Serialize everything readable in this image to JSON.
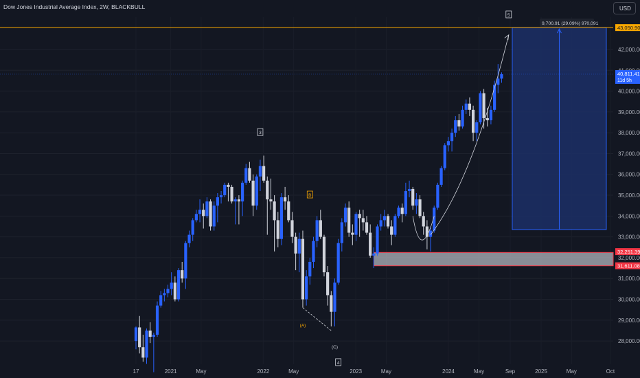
{
  "header": {
    "title": "Dow Jones Industrial Average Index, 2W, BLACKBULL",
    "currency": "USD"
  },
  "colors": {
    "background": "#131722",
    "up_candle": "#2962ff",
    "down_candle": "#d1d4dc",
    "resistance_line": "#f7a600",
    "projection_fill": "#1c2f66",
    "support_zone": "#b2b5be",
    "support_border": "#f23645"
  },
  "chart_data": {
    "type": "candlestick",
    "symbol": "Dow Jones Industrial Average Index",
    "interval": "2W",
    "y_ticks": [
      28000,
      29000,
      30000,
      31000,
      32000,
      33000,
      34000,
      35000,
      36000,
      37000,
      38000,
      39000,
      40000,
      41000,
      42000
    ],
    "ylim": [
      27500,
      43700
    ],
    "x_ticks": [
      {
        "label": "17",
        "date": "2020-08-17"
      },
      {
        "label": "2021",
        "date": "2021-01-01"
      },
      {
        "label": "May",
        "date": "2021-05-01"
      },
      {
        "label": "2022",
        "date": "2022-01-01"
      },
      {
        "label": "May",
        "date": "2022-05-01"
      },
      {
        "label": "2023",
        "date": "2023-01-01"
      },
      {
        "label": "May",
        "date": "2023-05-01"
      },
      {
        "label": "2024",
        "date": "2024-01-01"
      },
      {
        "label": "May",
        "date": "2024-05-01"
      },
      {
        "label": "Sep",
        "date": "2024-09-01"
      },
      {
        "label": "2025",
        "date": "2025-01-01"
      },
      {
        "label": "May",
        "date": "2025-05-01"
      },
      {
        "label": "Oct",
        "date": "2025-10-01"
      }
    ],
    "price_labels": {
      "target": "43,050.90",
      "current": "40,811.41",
      "countdown": "11d 5h",
      "zone_top": "32,251.39",
      "zone_bottom": "31,611.08"
    },
    "projection_label": "9,700.91 (29.09%) 970,091",
    "wave_labels": [
      "5",
      "3",
      "B",
      "(A)",
      "(C)",
      "4"
    ],
    "candles": [
      {
        "date": "2020-08-17",
        "open": 28000,
        "high": 28700,
        "low": 27600,
        "close": 28650
      },
      {
        "date": "2020-08-31",
        "open": 28650,
        "high": 29200,
        "low": 27400,
        "close": 27700
      },
      {
        "date": "2020-09-14",
        "open": 27700,
        "high": 28300,
        "low": 27000,
        "close": 27200
      },
      {
        "date": "2020-09-28",
        "open": 27200,
        "high": 28600,
        "low": 26900,
        "close": 28500
      },
      {
        "date": "2020-10-12",
        "open": 28500,
        "high": 28900,
        "low": 27900,
        "close": 28200
      },
      {
        "date": "2020-10-26",
        "open": 28200,
        "high": 28400,
        "low": 26500,
        "close": 28300
      },
      {
        "date": "2020-11-09",
        "open": 28300,
        "high": 29900,
        "low": 28200,
        "close": 29700
      },
      {
        "date": "2020-11-23",
        "open": 29700,
        "high": 30400,
        "low": 29600,
        "close": 30200
      },
      {
        "date": "2020-12-07",
        "open": 30200,
        "high": 30500,
        "low": 29900,
        "close": 30300
      },
      {
        "date": "2020-12-21",
        "open": 30300,
        "high": 30700,
        "low": 30100,
        "close": 30500
      },
      {
        "date": "2021-01-04",
        "open": 30500,
        "high": 31300,
        "low": 30200,
        "close": 30800
      },
      {
        "date": "2021-01-18",
        "open": 30800,
        "high": 31100,
        "low": 29900,
        "close": 30000
      },
      {
        "date": "2021-02-01",
        "open": 30000,
        "high": 31500,
        "low": 29900,
        "close": 31400
      },
      {
        "date": "2021-02-15",
        "open": 31400,
        "high": 31800,
        "low": 30800,
        "close": 31000
      },
      {
        "date": "2021-03-01",
        "open": 31000,
        "high": 32800,
        "low": 30500,
        "close": 32700
      },
      {
        "date": "2021-03-15",
        "open": 32700,
        "high": 33300,
        "low": 32500,
        "close": 33100
      },
      {
        "date": "2021-03-29",
        "open": 33100,
        "high": 33900,
        "low": 32800,
        "close": 33800
      },
      {
        "date": "2021-04-12",
        "open": 33800,
        "high": 34300,
        "low": 33700,
        "close": 34100
      },
      {
        "date": "2021-04-26",
        "open": 34100,
        "high": 34800,
        "low": 33700,
        "close": 34300
      },
      {
        "date": "2021-05-10",
        "open": 34300,
        "high": 34600,
        "low": 33400,
        "close": 34000
      },
      {
        "date": "2021-05-24",
        "open": 34000,
        "high": 34900,
        "low": 33900,
        "close": 34700
      },
      {
        "date": "2021-06-07",
        "open": 34700,
        "high": 34800,
        "low": 33300,
        "close": 33500
      },
      {
        "date": "2021-06-21",
        "open": 33500,
        "high": 34700,
        "low": 33300,
        "close": 34500
      },
      {
        "date": "2021-07-05",
        "open": 34500,
        "high": 35100,
        "low": 33700,
        "close": 34900
      },
      {
        "date": "2021-07-19",
        "open": 34900,
        "high": 35200,
        "low": 34600,
        "close": 35000
      },
      {
        "date": "2021-08-02",
        "open": 35000,
        "high": 35600,
        "low": 34900,
        "close": 35500
      },
      {
        "date": "2021-08-16",
        "open": 35500,
        "high": 35600,
        "low": 34700,
        "close": 35400
      },
      {
        "date": "2021-08-30",
        "open": 35400,
        "high": 35500,
        "low": 34600,
        "close": 34700
      },
      {
        "date": "2021-09-13",
        "open": 34700,
        "high": 34900,
        "low": 33600,
        "close": 34800
      },
      {
        "date": "2021-09-27",
        "open": 34800,
        "high": 35000,
        "low": 33600,
        "close": 34700
      },
      {
        "date": "2021-10-11",
        "open": 34700,
        "high": 35700,
        "low": 34000,
        "close": 35600
      },
      {
        "date": "2021-10-25",
        "open": 35600,
        "high": 36500,
        "low": 35500,
        "close": 36300
      },
      {
        "date": "2021-11-08",
        "open": 36300,
        "high": 36600,
        "low": 35600,
        "close": 35700
      },
      {
        "date": "2021-11-22",
        "open": 35700,
        "high": 36000,
        "low": 34000,
        "close": 34500
      },
      {
        "date": "2021-12-06",
        "open": 34500,
        "high": 36000,
        "low": 34300,
        "close": 35900
      },
      {
        "date": "2021-12-20",
        "open": 35900,
        "high": 36700,
        "low": 35200,
        "close": 36400
      },
      {
        "date": "2022-01-03",
        "open": 36400,
        "high": 36900,
        "low": 35600,
        "close": 35700
      },
      {
        "date": "2022-01-17",
        "open": 35700,
        "high": 35900,
        "low": 33100,
        "close": 34800
      },
      {
        "date": "2022-01-31",
        "open": 34800,
        "high": 35800,
        "low": 34300,
        "close": 34700
      },
      {
        "date": "2022-02-14",
        "open": 34700,
        "high": 35000,
        "low": 32300,
        "close": 33800
      },
      {
        "date": "2022-02-28",
        "open": 33800,
        "high": 34200,
        "low": 32500,
        "close": 32900
      },
      {
        "date": "2022-03-14",
        "open": 32900,
        "high": 35100,
        "low": 32600,
        "close": 34900
      },
      {
        "date": "2022-03-28",
        "open": 34900,
        "high": 35400,
        "low": 34300,
        "close": 34700
      },
      {
        "date": "2022-04-11",
        "open": 34700,
        "high": 35000,
        "low": 33700,
        "close": 33800
      },
      {
        "date": "2022-04-25",
        "open": 33800,
        "high": 34200,
        "low": 32700,
        "close": 33000
      },
      {
        "date": "2022-05-09",
        "open": 33000,
        "high": 33200,
        "low": 31400,
        "close": 32200
      },
      {
        "date": "2022-05-23",
        "open": 32200,
        "high": 33200,
        "low": 31300,
        "close": 32900
      },
      {
        "date": "2022-06-06",
        "open": 32900,
        "high": 33300,
        "low": 29600,
        "close": 30000
      },
      {
        "date": "2022-06-20",
        "open": 30000,
        "high": 31400,
        "low": 29700,
        "close": 31100
      },
      {
        "date": "2022-07-04",
        "open": 31100,
        "high": 32000,
        "low": 30700,
        "close": 31800
      },
      {
        "date": "2022-07-18",
        "open": 31800,
        "high": 33000,
        "low": 31500,
        "close": 32800
      },
      {
        "date": "2022-08-01",
        "open": 32800,
        "high": 34000,
        "low": 32500,
        "close": 33800
      },
      {
        "date": "2022-08-15",
        "open": 33800,
        "high": 34300,
        "low": 32900,
        "close": 33000
      },
      {
        "date": "2022-08-29",
        "open": 33000,
        "high": 33100,
        "low": 31100,
        "close": 31300
      },
      {
        "date": "2022-09-12",
        "open": 31300,
        "high": 31600,
        "low": 29700,
        "close": 30200
      },
      {
        "date": "2022-09-26",
        "open": 30200,
        "high": 30400,
        "low": 28700,
        "close": 29400
      },
      {
        "date": "2022-10-10",
        "open": 29400,
        "high": 31000,
        "low": 28700,
        "close": 30800
      },
      {
        "date": "2022-10-24",
        "open": 30800,
        "high": 32900,
        "low": 30700,
        "close": 32700
      },
      {
        "date": "2022-11-07",
        "open": 32700,
        "high": 33900,
        "low": 32300,
        "close": 33700
      },
      {
        "date": "2022-11-21",
        "open": 33700,
        "high": 34600,
        "low": 33500,
        "close": 34400
      },
      {
        "date": "2022-12-05",
        "open": 34400,
        "high": 34700,
        "low": 33000,
        "close": 33200
      },
      {
        "date": "2022-12-19",
        "open": 33200,
        "high": 33600,
        "low": 32600,
        "close": 33100
      },
      {
        "date": "2023-01-02",
        "open": 33100,
        "high": 34200,
        "low": 32800,
        "close": 34100
      },
      {
        "date": "2023-01-16",
        "open": 34100,
        "high": 34300,
        "low": 33000,
        "close": 33900
      },
      {
        "date": "2023-01-30",
        "open": 33900,
        "high": 34300,
        "low": 33300,
        "close": 33700
      },
      {
        "date": "2023-02-13",
        "open": 33700,
        "high": 34000,
        "low": 33100,
        "close": 33200
      },
      {
        "date": "2023-02-27",
        "open": 33200,
        "high": 33600,
        "low": 32000,
        "close": 32100
      },
      {
        "date": "2023-03-13",
        "open": 32100,
        "high": 32500,
        "low": 31500,
        "close": 32200
      },
      {
        "date": "2023-03-27",
        "open": 32200,
        "high": 33600,
        "low": 32100,
        "close": 33500
      },
      {
        "date": "2023-04-10",
        "open": 33500,
        "high": 34100,
        "low": 33300,
        "close": 33800
      },
      {
        "date": "2023-04-24",
        "open": 33800,
        "high": 34300,
        "low": 33500,
        "close": 34000
      },
      {
        "date": "2023-05-08",
        "open": 34000,
        "high": 34100,
        "low": 33400,
        "close": 33500
      },
      {
        "date": "2023-05-22",
        "open": 33500,
        "high": 33800,
        "low": 32600,
        "close": 33100
      },
      {
        "date": "2023-06-05",
        "open": 33100,
        "high": 34100,
        "low": 33000,
        "close": 34000
      },
      {
        "date": "2023-06-19",
        "open": 34000,
        "high": 34500,
        "low": 33900,
        "close": 34400
      },
      {
        "date": "2023-07-03",
        "open": 34400,
        "high": 34600,
        "low": 33700,
        "close": 34100
      },
      {
        "date": "2023-07-17",
        "open": 34100,
        "high": 35600,
        "low": 34000,
        "close": 35200
      },
      {
        "date": "2023-07-31",
        "open": 35200,
        "high": 35700,
        "low": 34900,
        "close": 35300
      },
      {
        "date": "2023-08-14",
        "open": 35300,
        "high": 35400,
        "low": 34300,
        "close": 34500
      },
      {
        "date": "2023-08-28",
        "open": 34500,
        "high": 35100,
        "low": 34100,
        "close": 34800
      },
      {
        "date": "2023-09-11",
        "open": 34800,
        "high": 35000,
        "low": 33900,
        "close": 34000
      },
      {
        "date": "2023-09-25",
        "open": 34000,
        "high": 34200,
        "low": 33100,
        "close": 33500
      },
      {
        "date": "2023-10-09",
        "open": 33500,
        "high": 33800,
        "low": 32400,
        "close": 33000
      },
      {
        "date": "2023-10-23",
        "open": 33000,
        "high": 33500,
        "low": 32300,
        "close": 33300
      },
      {
        "date": "2023-11-06",
        "open": 33300,
        "high": 34500,
        "low": 33200,
        "close": 34400
      },
      {
        "date": "2023-11-20",
        "open": 34400,
        "high": 35600,
        "low": 34300,
        "close": 35500
      },
      {
        "date": "2023-12-04",
        "open": 35500,
        "high": 36400,
        "low": 35400,
        "close": 36300
      },
      {
        "date": "2023-12-18",
        "open": 36300,
        "high": 37500,
        "low": 36200,
        "close": 37400
      },
      {
        "date": "2024-01-01",
        "open": 37400,
        "high": 37800,
        "low": 37100,
        "close": 37600
      },
      {
        "date": "2024-01-15",
        "open": 37600,
        "high": 38200,
        "low": 37100,
        "close": 38000
      },
      {
        "date": "2024-01-29",
        "open": 38000,
        "high": 38800,
        "low": 37800,
        "close": 38600
      },
      {
        "date": "2024-02-12",
        "open": 38600,
        "high": 38900,
        "low": 38100,
        "close": 38300
      },
      {
        "date": "2024-02-26",
        "open": 38300,
        "high": 39300,
        "low": 38200,
        "close": 39100
      },
      {
        "date": "2024-03-11",
        "open": 39100,
        "high": 39600,
        "low": 38900,
        "close": 39400
      },
      {
        "date": "2024-03-25",
        "open": 39400,
        "high": 39700,
        "low": 38800,
        "close": 39100
      },
      {
        "date": "2024-04-08",
        "open": 39100,
        "high": 39300,
        "low": 37600,
        "close": 38000
      },
      {
        "date": "2024-04-22",
        "open": 38000,
        "high": 38600,
        "low": 37600,
        "close": 38500
      },
      {
        "date": "2024-05-06",
        "open": 38500,
        "high": 40000,
        "low": 38400,
        "close": 39900
      },
      {
        "date": "2024-05-20",
        "open": 39900,
        "high": 40100,
        "low": 38200,
        "close": 38700
      },
      {
        "date": "2024-06-03",
        "open": 38700,
        "high": 39200,
        "low": 38300,
        "close": 38600
      },
      {
        "date": "2024-06-17",
        "open": 38600,
        "high": 39300,
        "low": 38400,
        "close": 39100
      },
      {
        "date": "2024-07-01",
        "open": 39100,
        "high": 40500,
        "low": 39000,
        "close": 40300
      },
      {
        "date": "2024-07-15",
        "open": 40300,
        "high": 41300,
        "low": 39900,
        "close": 40600
      },
      {
        "date": "2024-07-29",
        "open": 40600,
        "high": 40900,
        "low": 40400,
        "close": 40811
      }
    ],
    "annotations": {
      "target_price": 43050.9,
      "current_price": 40811.41,
      "support_zone": [
        31611.08,
        32251.39
      ],
      "projection_range": [
        33350,
        43050.9
      ],
      "projection_dates": [
        "2024-09-09",
        "2025-09-15"
      ]
    }
  }
}
